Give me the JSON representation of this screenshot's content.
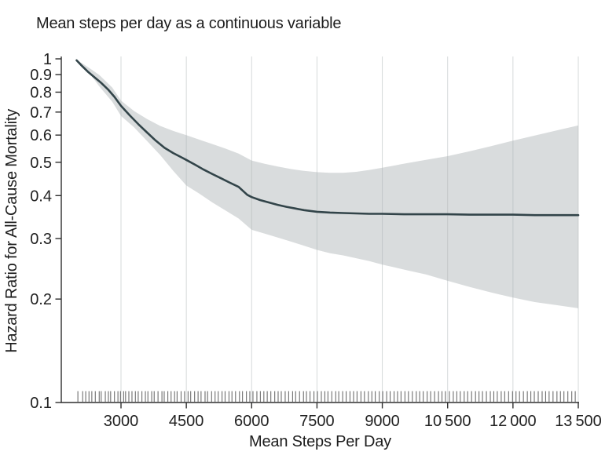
{
  "figure": {
    "background": "#ffffff"
  },
  "chart_data": {
    "type": "line",
    "title": "Mean steps per day as a continuous variable",
    "xlabel": "Mean Steps Per Day",
    "ylabel": "Hazard Ratio for All-Cause Mortality",
    "x_scale": "linear",
    "y_scale": "log10",
    "xlim": [
      1620,
      13520
    ],
    "ylim": [
      0.1,
      1
    ],
    "grid": "vertical",
    "legend": "none",
    "colors": {
      "axis": "#2e2e2e",
      "grid": "#aeb4b6",
      "text": "#212121",
      "curve": "#324449",
      "band": "#d9dcdd",
      "rug": "#555555"
    },
    "x_ticks": [
      {
        "value": 3000,
        "label": "3000"
      },
      {
        "value": 4500,
        "label": "4500"
      },
      {
        "value": 6000,
        "label": "6000"
      },
      {
        "value": 7500,
        "label": "7500"
      },
      {
        "value": 9000,
        "label": "9000"
      },
      {
        "value": 10500,
        "label": "10 500"
      },
      {
        "value": 12000,
        "label": "12 000"
      },
      {
        "value": 13500,
        "label": "13 500"
      }
    ],
    "y_ticks": [
      {
        "value": 1,
        "label": "1"
      },
      {
        "value": 0.9,
        "label": "0.9"
      },
      {
        "value": 0.8,
        "label": "0.8"
      },
      {
        "value": 0.7,
        "label": "0.7"
      },
      {
        "value": 0.6,
        "label": "0.6"
      },
      {
        "value": 0.5,
        "label": "0.5"
      },
      {
        "value": 0.4,
        "label": "0.4"
      },
      {
        "value": 0.3,
        "label": "0.3"
      },
      {
        "value": 0.2,
        "label": "0.2"
      },
      {
        "value": 0.1,
        "label": "0.1"
      }
    ],
    "series": [
      {
        "name": "hazard-ratio-spline",
        "type": "line",
        "color": "#324449",
        "points": [
          [
            1980,
            0.99
          ],
          [
            2100,
            0.955
          ],
          [
            2250,
            0.915
          ],
          [
            2400,
            0.882
          ],
          [
            2550,
            0.85
          ],
          [
            2700,
            0.815
          ],
          [
            2850,
            0.775
          ],
          [
            3000,
            0.73
          ],
          [
            3200,
            0.685
          ],
          [
            3400,
            0.645
          ],
          [
            3600,
            0.61
          ],
          [
            3800,
            0.578
          ],
          [
            4000,
            0.551
          ],
          [
            4200,
            0.532
          ],
          [
            4400,
            0.516
          ],
          [
            4500,
            0.508
          ],
          [
            4700,
            0.492
          ],
          [
            4900,
            0.476
          ],
          [
            5100,
            0.462
          ],
          [
            5300,
            0.449
          ],
          [
            5500,
            0.436
          ],
          [
            5700,
            0.424
          ],
          [
            5900,
            0.402
          ],
          [
            6000,
            0.396
          ],
          [
            6200,
            0.388
          ],
          [
            6400,
            0.382
          ],
          [
            6600,
            0.376
          ],
          [
            6800,
            0.371
          ],
          [
            7000,
            0.367
          ],
          [
            7200,
            0.363
          ],
          [
            7500,
            0.359
          ],
          [
            7800,
            0.357
          ],
          [
            8100,
            0.356
          ],
          [
            8400,
            0.355
          ],
          [
            8700,
            0.354
          ],
          [
            9000,
            0.354
          ],
          [
            9500,
            0.353
          ],
          [
            10000,
            0.353
          ],
          [
            10500,
            0.353
          ],
          [
            11000,
            0.352
          ],
          [
            11500,
            0.352
          ],
          [
            12000,
            0.352
          ],
          [
            12500,
            0.351
          ],
          [
            13000,
            0.351
          ],
          [
            13500,
            0.351
          ]
        ]
      },
      {
        "name": "95-percent-confidence-band",
        "type": "band",
        "color": "#d9dcdd",
        "upper": [
          [
            1980,
            0.995
          ],
          [
            2300,
            0.935
          ],
          [
            2500,
            0.898
          ],
          [
            2800,
            0.825
          ],
          [
            3000,
            0.756
          ],
          [
            3300,
            0.705
          ],
          [
            3600,
            0.668
          ],
          [
            3900,
            0.638
          ],
          [
            4200,
            0.617
          ],
          [
            4500,
            0.6
          ],
          [
            4800,
            0.582
          ],
          [
            5100,
            0.565
          ],
          [
            5400,
            0.548
          ],
          [
            5700,
            0.53
          ],
          [
            6000,
            0.506
          ],
          [
            6300,
            0.495
          ],
          [
            6600,
            0.486
          ],
          [
            6900,
            0.478
          ],
          [
            7200,
            0.472
          ],
          [
            7500,
            0.468
          ],
          [
            7800,
            0.466
          ],
          [
            8100,
            0.466
          ],
          [
            8400,
            0.469
          ],
          [
            8700,
            0.475
          ],
          [
            9000,
            0.482
          ],
          [
            9300,
            0.49
          ],
          [
            9600,
            0.498
          ],
          [
            10000,
            0.508
          ],
          [
            10500,
            0.521
          ],
          [
            11000,
            0.538
          ],
          [
            11500,
            0.557
          ],
          [
            12000,
            0.578
          ],
          [
            12500,
            0.598
          ],
          [
            13000,
            0.619
          ],
          [
            13500,
            0.64
          ]
        ],
        "lower": [
          [
            1980,
            0.985
          ],
          [
            2300,
            0.9
          ],
          [
            2500,
            0.832
          ],
          [
            2800,
            0.75
          ],
          [
            3000,
            0.682
          ],
          [
            3300,
            0.632
          ],
          [
            3600,
            0.576
          ],
          [
            3900,
            0.525
          ],
          [
            4200,
            0.472
          ],
          [
            4500,
            0.428
          ],
          [
            4800,
            0.405
          ],
          [
            5100,
            0.382
          ],
          [
            5400,
            0.362
          ],
          [
            5700,
            0.343
          ],
          [
            6000,
            0.318
          ],
          [
            6300,
            0.31
          ],
          [
            6600,
            0.302
          ],
          [
            6900,
            0.294
          ],
          [
            7200,
            0.286
          ],
          [
            7500,
            0.278
          ],
          [
            7800,
            0.272
          ],
          [
            8100,
            0.268
          ],
          [
            8400,
            0.263
          ],
          [
            8700,
            0.258
          ],
          [
            9000,
            0.252
          ],
          [
            9300,
            0.247
          ],
          [
            9600,
            0.242
          ],
          [
            10000,
            0.236
          ],
          [
            10500,
            0.226
          ],
          [
            11000,
            0.217
          ],
          [
            11500,
            0.209
          ],
          [
            12000,
            0.202
          ],
          [
            12500,
            0.196
          ],
          [
            13000,
            0.192
          ],
          [
            13500,
            0.188
          ]
        ]
      }
    ],
    "rug": {
      "name": "participant-rug",
      "color": "#555555",
      "positions": [
        2010,
        2120,
        2190,
        2265,
        2330,
        2410,
        2500,
        2545,
        2640,
        2710,
        2762,
        2850,
        2930,
        2988,
        3060,
        3105,
        3180,
        3252,
        3330,
        3395,
        3480,
        3560,
        3618,
        3705,
        3762,
        3850,
        3940,
        3992,
        4075,
        4150,
        4230,
        4288,
        4380,
        4460,
        4540,
        4600,
        4690,
        4770,
        4838,
        4930,
        4988,
        5080,
        5160,
        5232,
        5320,
        5390,
        5480,
        5548,
        5630,
        5720,
        5790,
        5880,
        5958,
        6030,
        6120,
        6200,
        6280,
        6358,
        6440,
        6530,
        6608,
        6680,
        6770,
        6850,
        6940,
        7010,
        7100,
        7190,
        7258,
        7340,
        7430,
        7510,
        7600,
        7680,
        7752,
        7840,
        7930,
        8000,
        8090,
        8170,
        8258,
        8340,
        8420,
        8510,
        8590,
        8680,
        8760,
        8838,
        8930,
        9010,
        9100,
        9180,
        9270,
        9350,
        9430,
        9520,
        9600,
        9690,
        9780,
        9858,
        9940,
        10030,
        10110,
        10200,
        10290,
        10370,
        10450,
        10540,
        10630,
        10710,
        10790,
        10880,
        10960,
        11050,
        11140,
        11220,
        11300,
        11390,
        11480,
        11560,
        11640,
        11730,
        11810,
        11900,
        11990,
        12070,
        12150,
        12240,
        12330,
        12410,
        12490,
        12580,
        12670,
        12750,
        12830,
        12920,
        13010,
        13090,
        13170,
        13260,
        13350,
        13430
      ]
    }
  }
}
